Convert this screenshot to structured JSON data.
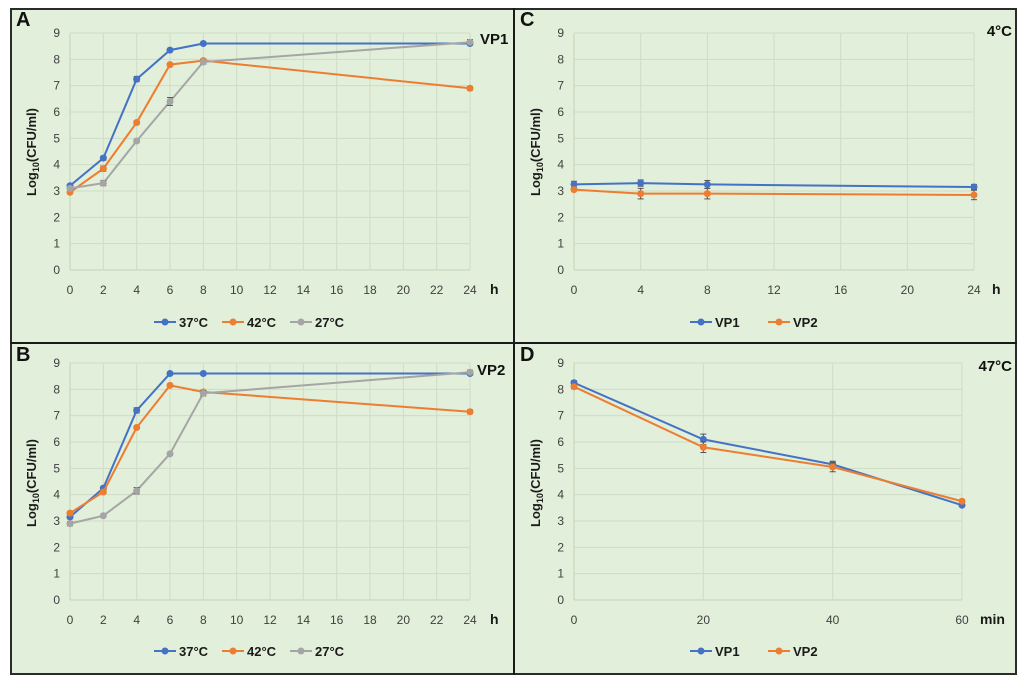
{
  "figure": {
    "colors": {
      "37C": "#4472c4",
      "42C": "#ed7d31",
      "27C": "#a5a5a5",
      "VP1": "#4472c4",
      "VP2": "#ed7d31"
    }
  },
  "chart_data": [
    {
      "panel": "A",
      "type": "line",
      "corner_label": "VP1",
      "ylabel_main": "Log",
      "ylabel_sub": "10",
      "ylabel_rest": "(CFU/ml)",
      "xunit": "h",
      "x_ticks": [
        "0",
        "2",
        "4",
        "6",
        "8",
        "10",
        "12",
        "14",
        "16",
        "18",
        "20",
        "22",
        "24"
      ],
      "x": [
        0,
        2,
        4,
        6,
        8,
        24
      ],
      "ylim": [
        0,
        9
      ],
      "y_ticks": [
        "0",
        "1",
        "2",
        "3",
        "4",
        "5",
        "6",
        "7",
        "8",
        "9"
      ],
      "grid": true,
      "legend": "bottom",
      "series": [
        {
          "name": "37°C",
          "color_key": "37C",
          "values": [
            3.2,
            4.25,
            7.25,
            8.35,
            8.6,
            8.6
          ],
          "err": [
            0.05,
            0.08,
            0.1,
            0.05,
            0.04,
            0.04
          ]
        },
        {
          "name": "42°C",
          "color_key": "42C",
          "values": [
            2.95,
            3.85,
            5.6,
            7.8,
            7.95,
            6.9
          ],
          "err": [
            0.05,
            0.1,
            0.06,
            0.05,
            0.05,
            0.07
          ]
        },
        {
          "name": "27°C",
          "color_key": "27C",
          "values": [
            3.1,
            3.3,
            4.9,
            6.4,
            7.9,
            8.65
          ],
          "err": [
            0.05,
            0.1,
            0.06,
            0.15,
            0.08,
            0.1
          ]
        }
      ]
    },
    {
      "panel": "B",
      "type": "line",
      "corner_label": "VP2",
      "ylabel_main": "Log",
      "ylabel_sub": "10",
      "ylabel_rest": "(CFU/ml)",
      "xunit": "h",
      "x_ticks": [
        "0",
        "2",
        "4",
        "6",
        "8",
        "10",
        "12",
        "14",
        "16",
        "18",
        "20",
        "22",
        "24"
      ],
      "x": [
        0,
        2,
        4,
        6,
        8,
        24
      ],
      "ylim": [
        0,
        9
      ],
      "y_ticks": [
        "0",
        "1",
        "2",
        "3",
        "4",
        "5",
        "6",
        "7",
        "8",
        "9"
      ],
      "grid": true,
      "legend": "bottom",
      "series": [
        {
          "name": "37°C",
          "color_key": "37C",
          "values": [
            3.15,
            4.25,
            7.2,
            8.6,
            8.6,
            8.6
          ],
          "err": [
            0.06,
            0.05,
            0.1,
            0.04,
            0.04,
            0.04
          ]
        },
        {
          "name": "42°C",
          "color_key": "42C",
          "values": [
            3.3,
            4.1,
            6.55,
            8.15,
            7.9,
            7.15
          ],
          "err": [
            0.05,
            0.06,
            0.05,
            0.05,
            0.05,
            0.07
          ]
        },
        {
          "name": "27°C",
          "color_key": "27C",
          "values": [
            2.9,
            3.2,
            4.15,
            5.55,
            7.85,
            8.65
          ],
          "err": [
            0.08,
            0.05,
            0.12,
            0.06,
            0.1,
            0.08
          ]
        }
      ]
    },
    {
      "panel": "C",
      "type": "line",
      "corner_label": "4°C",
      "ylabel_main": "Log",
      "ylabel_sub": "10",
      "ylabel_rest": "(CFU/ml)",
      "xunit": "h",
      "x_ticks": [
        "0",
        "4",
        "8",
        "12",
        "16",
        "20",
        "24"
      ],
      "x": [
        0,
        4,
        8,
        24
      ],
      "ylim": [
        0,
        9
      ],
      "y_ticks": [
        "0",
        "1",
        "2",
        "3",
        "4",
        "5",
        "6",
        "7",
        "8",
        "9"
      ],
      "grid": true,
      "legend": "bottom",
      "series": [
        {
          "name": "VP1",
          "color_key": "VP1",
          "values": [
            3.25,
            3.3,
            3.25,
            3.15
          ],
          "err": [
            0.12,
            0.12,
            0.15,
            0.1
          ]
        },
        {
          "name": "VP2",
          "color_key": "VP2",
          "values": [
            3.05,
            2.9,
            2.9,
            2.85
          ],
          "err": [
            0.05,
            0.2,
            0.2,
            0.18
          ]
        }
      ]
    },
    {
      "panel": "D",
      "type": "line",
      "corner_label": "47°C",
      "ylabel_main": "Log",
      "ylabel_sub": "10",
      "ylabel_rest": "(CFU/ml)",
      "xunit": "min",
      "x_ticks": [
        "0",
        "20",
        "40",
        "60"
      ],
      "x": [
        0,
        20,
        40,
        60
      ],
      "ylim": [
        0,
        9
      ],
      "y_ticks": [
        "0",
        "1",
        "2",
        "3",
        "4",
        "5",
        "6",
        "7",
        "8",
        "9"
      ],
      "grid": true,
      "legend": "bottom",
      "series": [
        {
          "name": "VP1",
          "color_key": "VP1",
          "values": [
            8.25,
            6.1,
            5.15,
            3.6
          ],
          "err": [
            0.08,
            0.2,
            0.12,
            0.05
          ]
        },
        {
          "name": "VP2",
          "color_key": "VP2",
          "values": [
            8.1,
            5.8,
            5.05,
            3.75
          ],
          "err": [
            0.08,
            0.2,
            0.18,
            0.06
          ]
        }
      ]
    }
  ]
}
